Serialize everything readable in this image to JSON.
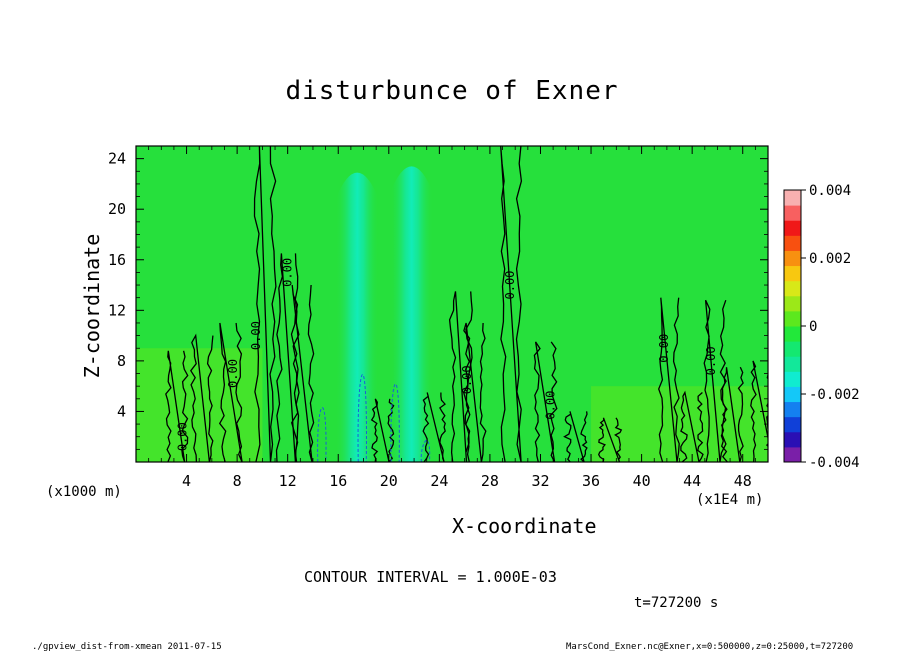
{
  "chart_data": {
    "type": "heatmap",
    "title": "disturbunce of Exner",
    "xlabel": "X-coordinate",
    "ylabel": "Z-coordinate",
    "x_unit_left": "(x1000 m)",
    "x_unit_right": "(x1E4 m)",
    "xlim": [
      0,
      50
    ],
    "ylim": [
      0,
      25
    ],
    "x_ticks": [
      4,
      8,
      12,
      16,
      20,
      24,
      28,
      32,
      36,
      40,
      44,
      48
    ],
    "y_ticks": [
      4,
      8,
      12,
      16,
      20,
      24
    ],
    "colorbar": {
      "range": [
        -0.004,
        0.004
      ],
      "tick_labels": [
        "0.004",
        "0.002",
        "0",
        "-0.002",
        "-0.004"
      ],
      "tick_values": [
        0.004,
        0.002,
        0,
        -0.002,
        -0.004
      ],
      "colors": [
        "#7a1fa8",
        "#2a0fb4",
        "#1040d8",
        "#1480f0",
        "#14c8f8",
        "#10ecd0",
        "#12e89a",
        "#14e870",
        "#22e83a",
        "#5ce81e",
        "#9ce818",
        "#d8e818",
        "#f8c810",
        "#f89010",
        "#f85010",
        "#f01818",
        "#f86060",
        "#f8b0b0"
      ]
    },
    "field_background": "#26e03c",
    "contour_interval": "1.000E-03",
    "contour_labels": [
      "0.00"
    ],
    "contour_label_positions": [
      [
        4,
        2
      ],
      [
        8,
        7
      ],
      [
        9.8,
        10
      ],
      [
        12.3,
        15
      ],
      [
        26.5,
        6.5
      ],
      [
        29.9,
        14
      ],
      [
        33.1,
        4.5
      ],
      [
        42.1,
        9
      ],
      [
        45.8,
        8
      ]
    ],
    "features": [
      {
        "name": "negative-plume-a",
        "x": 17.5,
        "z_top": 24,
        "half_width": 1.7,
        "value": -0.0005
      },
      {
        "name": "negative-plume-b",
        "x": 21.8,
        "z_top": 24.5,
        "half_width": 1.7,
        "value": -0.0007
      },
      {
        "name": "positive-near-surface-left",
        "x_range": [
          0,
          10
        ],
        "z_top": 9,
        "value": 0.0004
      },
      {
        "name": "positive-near-surface-right",
        "x_range": [
          36,
          50
        ],
        "z_top": 6,
        "value": 0.0004
      }
    ]
  },
  "labels": {
    "interval": "CONTOUR INTERVAL = 1.000E-03",
    "time": "t=727200 s",
    "footer_left": "./gpview_dist-from-xmean  2011-07-15",
    "footer_right": "MarsCond_Exner.nc@Exner,x=0:500000,z=0:25000,t=727200"
  }
}
